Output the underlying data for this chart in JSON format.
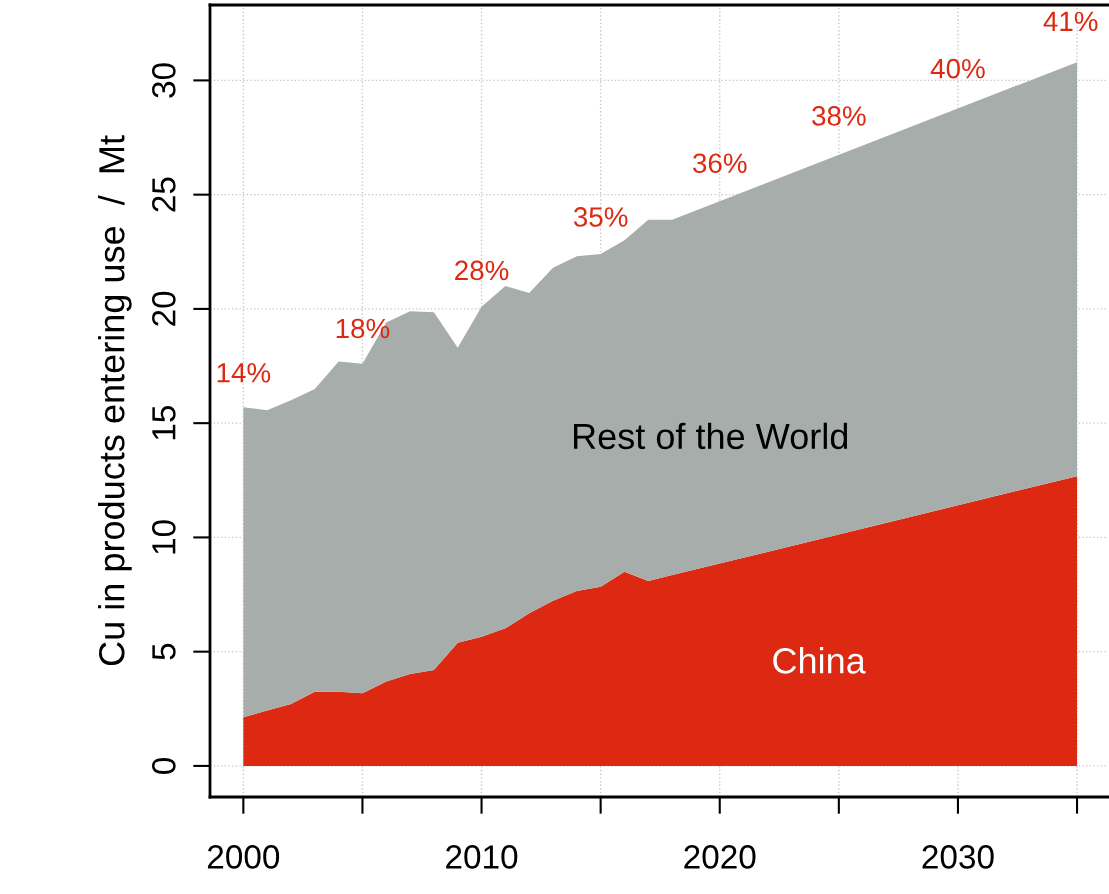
{
  "chart_data": {
    "type": "area",
    "stacked": true,
    "ylabel": "Cu in products entering use  /  Mt",
    "x": [
      2000,
      2001,
      2002,
      2003,
      2004,
      2005,
      2006,
      2007,
      2008,
      2009,
      2010,
      2011,
      2012,
      2013,
      2014,
      2015,
      2016,
      2017,
      2018,
      2035
    ],
    "series": [
      {
        "name": "China",
        "color": "#dd2911",
        "values": [
          2.13,
          2.42,
          2.71,
          3.25,
          3.25,
          3.18,
          3.69,
          4.02,
          4.2,
          5.39,
          5.65,
          6.02,
          6.68,
          7.23,
          7.65,
          7.84,
          8.5,
          8.09,
          8.35,
          12.68
        ]
      },
      {
        "name": "Rest of the World",
        "color": "#a7adab",
        "values": [
          13.57,
          13.15,
          13.29,
          13.25,
          14.45,
          14.42,
          15.71,
          15.88,
          15.65,
          12.91,
          14.45,
          14.98,
          14.02,
          14.57,
          14.65,
          14.56,
          14.5,
          15.81,
          15.55,
          18.12
        ]
      }
    ],
    "annotations": [
      "14%",
      "18%",
      "28%",
      "35%",
      "36%",
      "38%",
      "40%",
      "41%"
    ],
    "xlim": [
      1998.6,
      2036.3
    ],
    "ylim": [
      -1.36,
      33.3
    ],
    "xticks": [
      2000,
      {
        "value": 2005,
        "label": null
      },
      2010,
      {
        "value": 2015,
        "label": null
      },
      2020,
      {
        "value": 2025,
        "label": null
      },
      2030,
      {
        "value": 2035,
        "label": null
      }
    ],
    "yticks": [
      0,
      5,
      10,
      15,
      20,
      25,
      30
    ],
    "grid": true,
    "legend": false
  }
}
